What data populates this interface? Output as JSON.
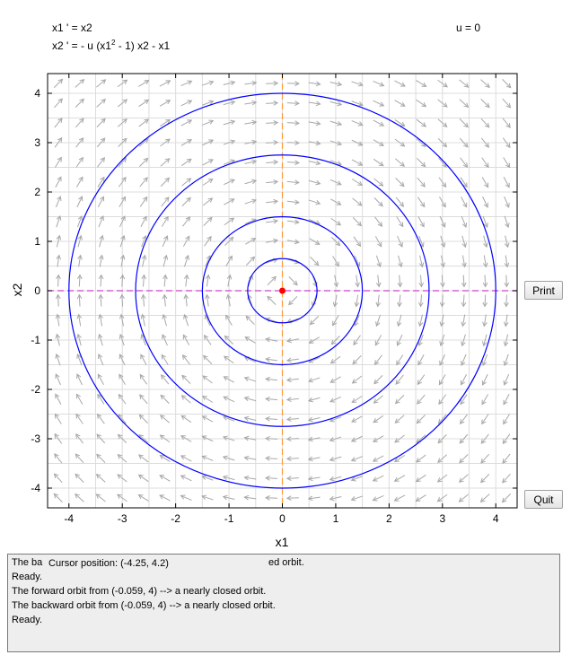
{
  "equations": {
    "line1": "x1 ' = x2",
    "line2_prefix": "x2 ' = - u (x1",
    "line2_sup": "2",
    "line2_suffix": " - 1) x2 - x1",
    "parameter": "u = 0"
  },
  "buttons": {
    "print": "Print",
    "quit": "Quit"
  },
  "console": {
    "line1_left": "The ba",
    "line1_right": "ed orbit.",
    "lines": [
      "Ready.",
      "The forward orbit from (-0.059, 4) --> a nearly closed orbit.",
      "The backward orbit from (-0.059, 4) --> a nearly closed orbit.",
      "Ready."
    ],
    "tooltip": "Cursor position:  (-4.25, 4.2)"
  },
  "chart_data": {
    "type": "line",
    "xlabel": "x1",
    "ylabel": "x2",
    "xlim": [
      -4.4,
      4.4
    ],
    "ylim": [
      -4.4,
      4.4
    ],
    "xticks": [
      "-4",
      "-3",
      "-2",
      "-1",
      "0",
      "1",
      "2",
      "3",
      "4"
    ],
    "yticks": [
      "-4",
      "-3",
      "-2",
      "-1",
      "0",
      "1",
      "2",
      "3",
      "4"
    ],
    "grid": true,
    "u": 0,
    "orbits": [
      {
        "center": [
          0,
          0
        ],
        "radius": 4.0
      },
      {
        "center": [
          0,
          0
        ],
        "radius": 2.75
      },
      {
        "center": [
          0,
          0
        ],
        "radius": 1.5
      },
      {
        "center": [
          0,
          0
        ],
        "radius": 0.65
      }
    ],
    "equilibrium": [
      0,
      0
    ],
    "nullclines": {
      "x1_nullcline": "x2 = 0",
      "x2_nullcline": "x1 = 0"
    },
    "colors": {
      "orbit": "#0000ff",
      "equilibrium": "#ff0000",
      "x1_nullcline": "#cc44cc",
      "x2_nullcline": "#ff9933",
      "field": "#a8a8a8",
      "grid": "#dcdcdc"
    }
  }
}
